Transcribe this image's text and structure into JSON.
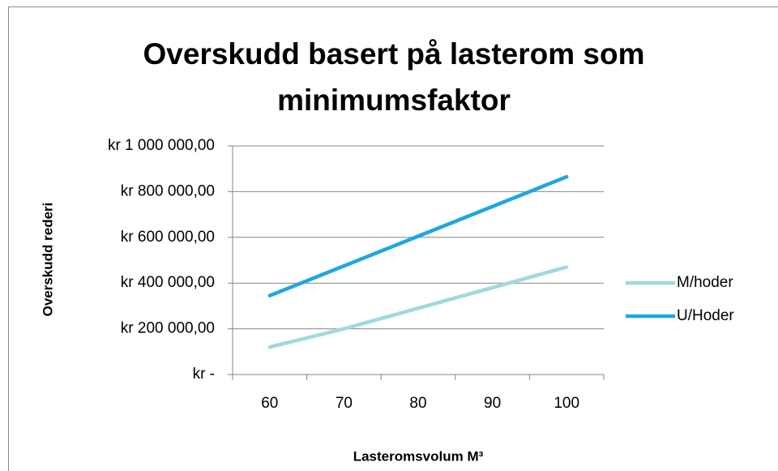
{
  "chart_data": {
    "type": "line",
    "title": [
      "Overskudd basert på lasterom som",
      "minimumsfaktor"
    ],
    "x_label": "Lasteromsvolum M³",
    "y_label": "Overskudd rederi",
    "categories": [
      "60",
      "70",
      "80",
      "90",
      "100"
    ],
    "series": [
      {
        "name": "M/hoder",
        "color": "#9fd9e0",
        "values": [
          120000,
          200000,
          290000,
          380000,
          470000
        ]
      },
      {
        "name": "U/Hoder",
        "color": "#1ea7e1",
        "values": [
          345000,
          475000,
          605000,
          735000,
          865000
        ]
      }
    ],
    "ylim": [
      0,
      1000000
    ],
    "yticks": [
      {
        "value": 0,
        "label": "kr -"
      },
      {
        "value": 200000,
        "label": "kr 200 000,00"
      },
      {
        "value": 400000,
        "label": "kr 400 000,00"
      },
      {
        "value": 600000,
        "label": "kr 600 000,00"
      },
      {
        "value": 800000,
        "label": "kr 800 000,00"
      },
      {
        "value": 1000000,
        "label": "kr 1 000 000,00"
      }
    ],
    "grid": true,
    "legend": "right"
  }
}
